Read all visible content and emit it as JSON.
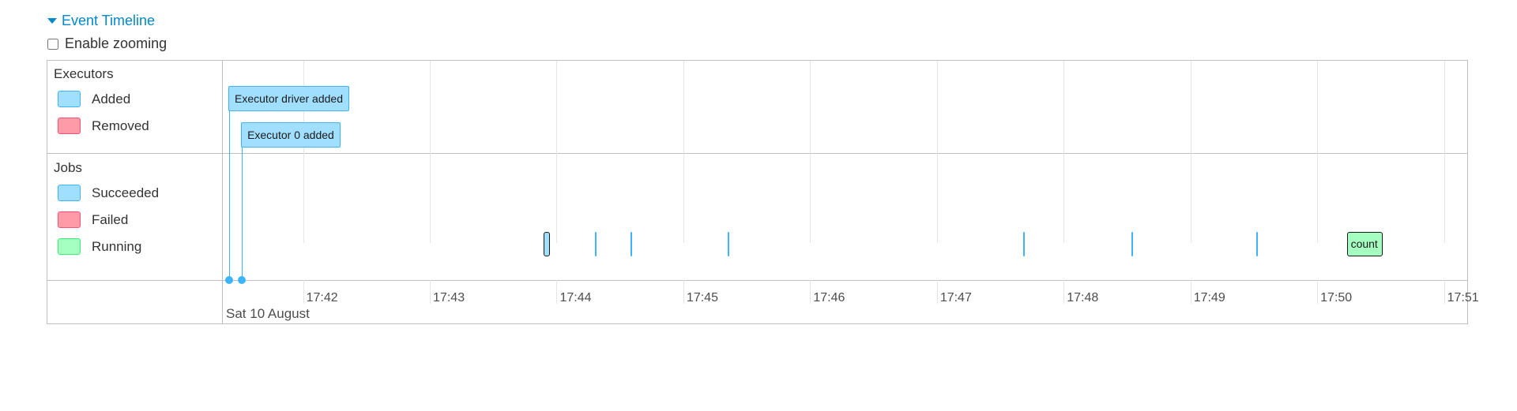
{
  "section": {
    "title": "Event Timeline",
    "expanded": true,
    "icon": "caret-down-icon"
  },
  "zoom_toggle": {
    "label": "Enable zooming",
    "checked": false
  },
  "colors": {
    "added_fill": "#a0dfff",
    "added_border": "#3eb4ff",
    "removed_fill": "#ff9aa8",
    "removed_border": "#ff5475",
    "running_fill": "#a5ffc0",
    "running_border": "#3eee76"
  },
  "executors": {
    "title": "Executors",
    "legend": [
      {
        "label": "Added",
        "status": "added"
      },
      {
        "label": "Removed",
        "status": "removed"
      }
    ],
    "events": [
      {
        "label": "Executor driver added",
        "time": "17:41:25",
        "status": "added"
      },
      {
        "label": "Executor 0 added",
        "time": "17:41:31",
        "status": "added"
      }
    ]
  },
  "jobs": {
    "title": "Jobs",
    "legend": [
      {
        "label": "Succeeded",
        "status": "succeeded"
      },
      {
        "label": "Failed",
        "status": "failed"
      },
      {
        "label": "Running",
        "status": "running"
      }
    ],
    "items": [
      {
        "start": "17:43:54",
        "end": "17:43:57",
        "status": "succeeded",
        "label": ""
      },
      {
        "start": "17:44:18",
        "end": "17:44:18",
        "status": "succeeded",
        "label": ""
      },
      {
        "start": "17:44:35",
        "end": "17:44:35",
        "status": "succeeded",
        "label": ""
      },
      {
        "start": "17:45:21",
        "end": "17:45:21",
        "status": "succeeded",
        "label": ""
      },
      {
        "start": "17:47:41",
        "end": "17:47:42",
        "status": "succeeded",
        "label": ""
      },
      {
        "start": "17:48:32",
        "end": "17:48:32",
        "status": "succeeded",
        "label": ""
      },
      {
        "start": "17:49:31",
        "end": "17:49:31",
        "status": "succeeded",
        "label": ""
      },
      {
        "start": "17:50:14",
        "end": "17:50:31",
        "status": "running",
        "label": "count"
      }
    ]
  },
  "axis": {
    "range": [
      "17:41:22",
      "17:51:11"
    ],
    "ticks": [
      "17:42",
      "17:43",
      "17:44",
      "17:45",
      "17:46",
      "17:47",
      "17:48",
      "17:49",
      "17:50",
      "17:51"
    ],
    "date_label": "Sat 10 August"
  }
}
